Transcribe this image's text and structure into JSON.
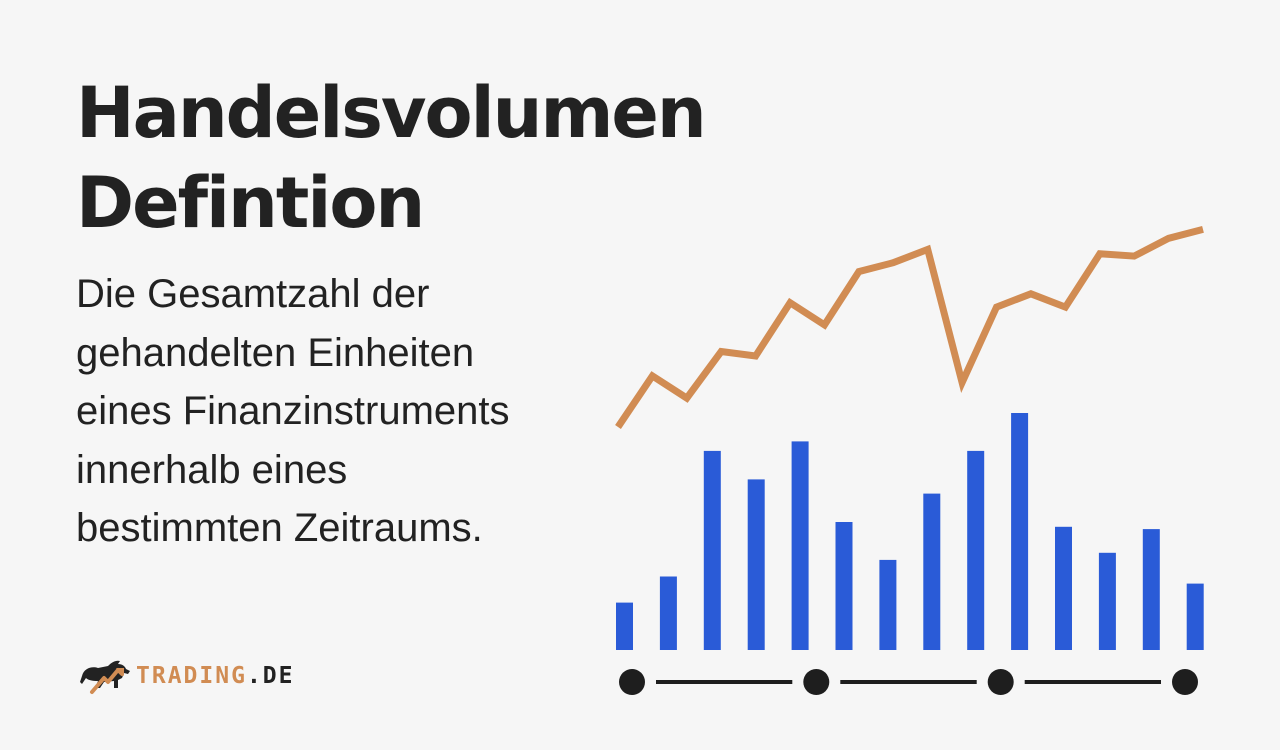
{
  "title": {
    "line1": "Handelsvolumen",
    "line2": "Defintion"
  },
  "description": {
    "lines": [
      "Die Gesamtzahl der",
      "gehandelten Einheiten",
      "eines Finanzinstruments",
      "innerhalb eines",
      "bestimmten Zeitraums."
    ]
  },
  "logo": {
    "brand": "TRADING",
    "dot": ".",
    "tld": "DE",
    "icon": "bull-icon"
  },
  "colors": {
    "background": "#f6f6f6",
    "text": "#222222",
    "line": "#d18c53",
    "bars": "#2a5bd7",
    "timeline": "#1e1e1e"
  },
  "chart_data": {
    "type": "bar",
    "title": "",
    "xlabel": "",
    "ylabel": "",
    "axes": "hidden",
    "grid": false,
    "legend": "none",
    "ylim": [
      0,
      100
    ],
    "series": [
      {
        "kind": "bar",
        "values": [
          20,
          31,
          84,
          72,
          88,
          54,
          38,
          66,
          84,
          100,
          52,
          41,
          51,
          28
        ]
      },
      {
        "kind": "line",
        "values": [
          15,
          38,
          28,
          49,
          47,
          71,
          61,
          85,
          89,
          95,
          35,
          69,
          75,
          69,
          93,
          92,
          100,
          104
        ]
      }
    ],
    "timeline_markers": 4
  }
}
